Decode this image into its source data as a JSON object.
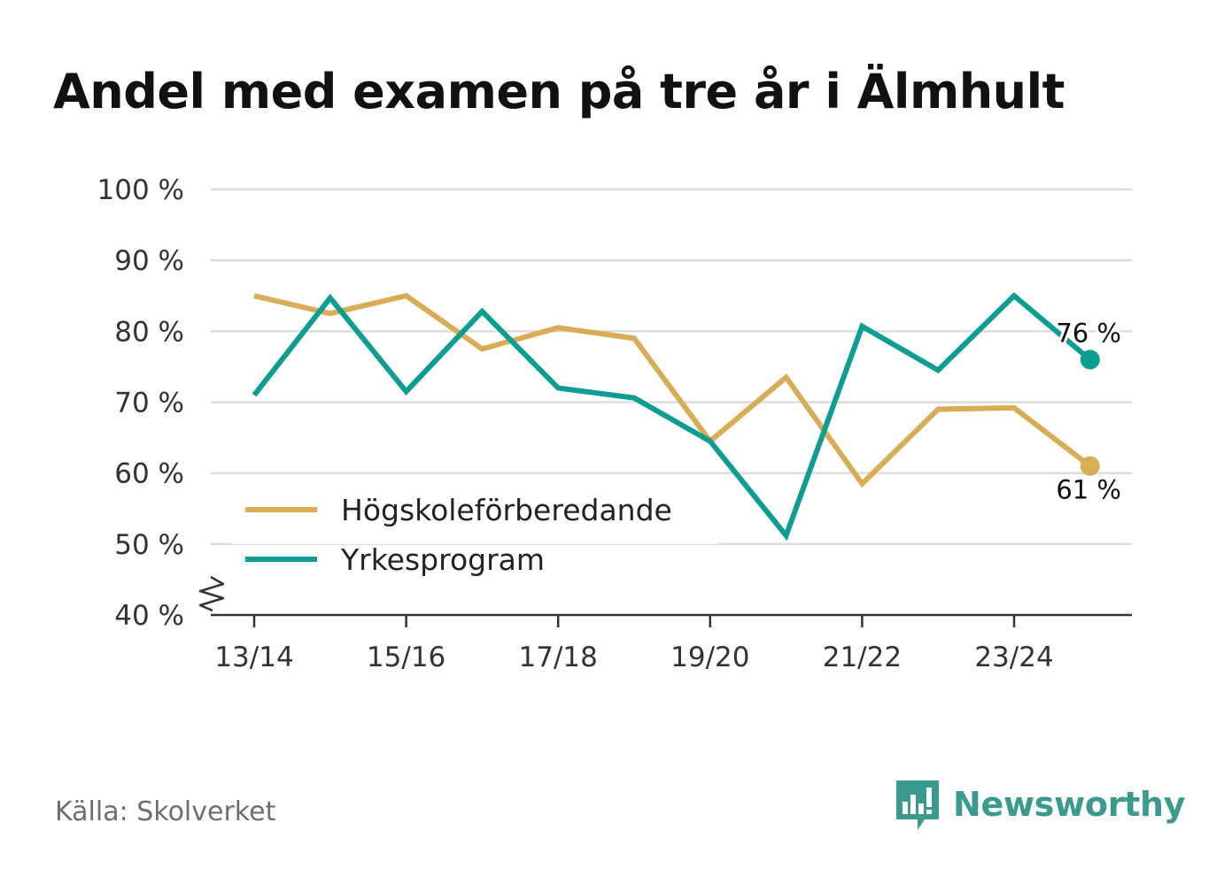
{
  "title": "Andel med examen på tre år i Älmhult",
  "source": "Källa: Skolverket",
  "brand": {
    "name": "Newsworthy",
    "icon": "newsworthy-logo-icon"
  },
  "colors": {
    "hogskole": "#d9ac56",
    "yrkes": "#0c9e92",
    "grid": "#dddddd",
    "axis": "#333333",
    "text": "#333333"
  },
  "chart_data": {
    "type": "line",
    "title": "Andel med examen på tre år i Älmhult",
    "x": [
      "13/14",
      "14/15",
      "15/16",
      "16/17",
      "17/18",
      "18/19",
      "19/20",
      "20/21",
      "21/22",
      "22/23",
      "23/24",
      "24/25"
    ],
    "x_tick_labels": [
      "13/14",
      "15/16",
      "17/18",
      "19/20",
      "21/22",
      "23/24"
    ],
    "y_tick_labels": [
      "40 %",
      "50 %",
      "60 %",
      "70 %",
      "80 %",
      "90 %",
      "100 %"
    ],
    "ylim": [
      40,
      100
    ],
    "y_axis_break": true,
    "grid": true,
    "legend_position": "bottom-left",
    "series": [
      {
        "name": "Högskoleförberedande",
        "color": "#d9ac56",
        "values": [
          85,
          82.5,
          85,
          77.5,
          80.5,
          79,
          64.5,
          73.5,
          58.5,
          69,
          69.2,
          61
        ],
        "end_label": "61 %"
      },
      {
        "name": "Yrkesprogram",
        "color": "#0c9e92",
        "values": [
          71,
          84.7,
          71.5,
          82.8,
          72,
          70.6,
          64.5,
          51.2,
          80.7,
          74.5,
          85,
          76
        ],
        "end_label": "76 %"
      }
    ]
  }
}
